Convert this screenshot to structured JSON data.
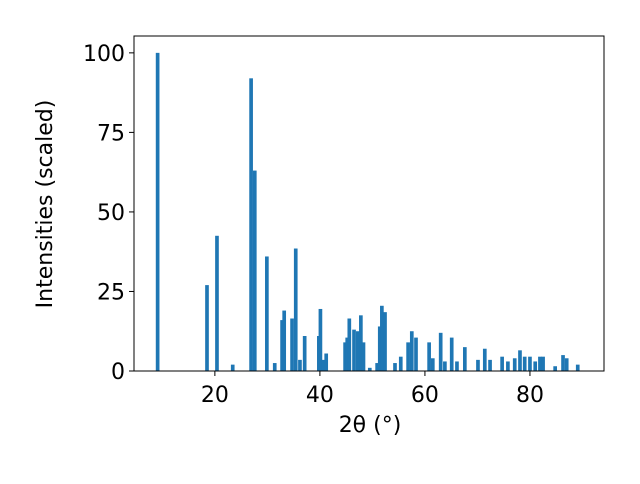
{
  "chart_data": {
    "type": "bar",
    "xlabel": "2θ (°)",
    "ylabel": "Intensities (scaled)",
    "color": "#1f77b4",
    "bar_width": 0.7,
    "x": [
      9.1,
      18.5,
      20.4,
      23.4,
      26.9,
      27.6,
      29.9,
      31.4,
      32.8,
      33.2,
      34.7,
      35.4,
      36.2,
      37.1,
      39.8,
      40.1,
      40.6,
      41.2,
      44.8,
      45.2,
      45.6,
      46.5,
      47.2,
      47.8,
      48.3,
      49.5,
      50.9,
      51.4,
      51.8,
      52.4,
      54.3,
      55.4,
      56.8,
      57.5,
      58.3,
      60.8,
      61.5,
      63.0,
      63.8,
      65.1,
      66.1,
      67.6,
      70.1,
      71.4,
      72.4,
      74.7,
      75.8,
      77.1,
      78.1,
      79.0,
      80.0,
      81.0,
      81.9,
      82.5,
      84.8,
      86.3,
      87.0,
      89.1
    ],
    "values": [
      100,
      27,
      42.5,
      2,
      92,
      63,
      36,
      2.5,
      16,
      19,
      16.5,
      38.5,
      3.5,
      11,
      11,
      19.5,
      3.5,
      5.5,
      9,
      10.5,
      16.5,
      13,
      12.5,
      17.5,
      9,
      1,
      2.5,
      14,
      20.5,
      18.5,
      2.5,
      4.5,
      9,
      12.5,
      10.5,
      9,
      4,
      12,
      3,
      10.5,
      3,
      7.5,
      3.5,
      7,
      3.5,
      4.5,
      3,
      4,
      6.5,
      4.5,
      4.5,
      3,
      4.5,
      4.5,
      1.5,
      5,
      4,
      2
    ],
    "xlim": [
      4.6,
      94.1
    ],
    "ylim": [
      0,
      105.3
    ],
    "xticks": [
      20,
      40,
      60,
      80
    ],
    "yticks": [
      0,
      25,
      50,
      75,
      100
    ]
  }
}
